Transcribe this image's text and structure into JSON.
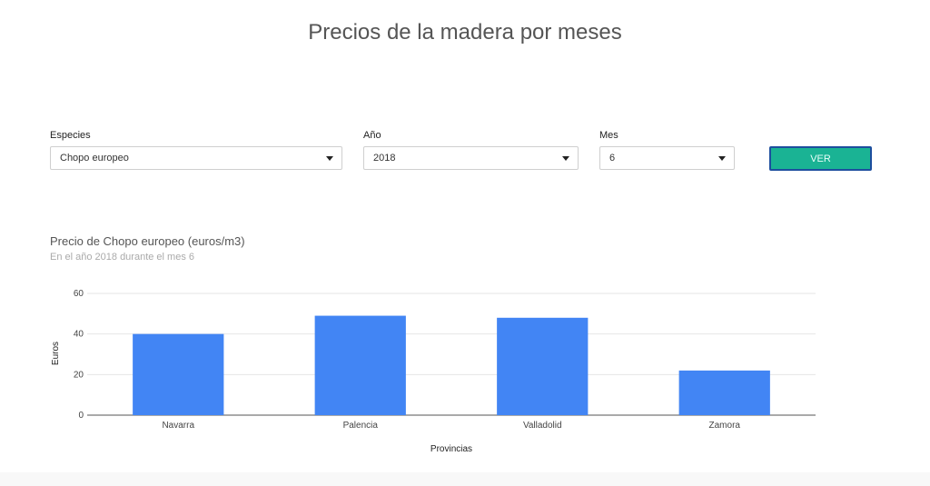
{
  "page": {
    "title": "Precios de la madera por meses"
  },
  "filters": {
    "species": {
      "label": "Especies",
      "value": "Chopo europeo"
    },
    "year": {
      "label": "Año",
      "value": "2018"
    },
    "month": {
      "label": "Mes",
      "value": "6"
    },
    "submit_label": "VER"
  },
  "colors": {
    "bar": "#4285f4",
    "button": "#1ab394",
    "grid": "#e6e6e6"
  },
  "chart_data": {
    "type": "bar",
    "title": "Precio de Chopo europeo (euros/m3)",
    "subtitle": "En el año 2018 durante el mes 6",
    "xlabel": "Provincias",
    "ylabel": "Euros",
    "categories": [
      "Navarra",
      "Palencia",
      "Valladolid",
      "Zamora"
    ],
    "values": [
      40,
      49,
      48,
      22
    ],
    "ylim": [
      0,
      60
    ],
    "yticks": [
      0,
      20,
      40,
      60
    ],
    "grid": true
  }
}
